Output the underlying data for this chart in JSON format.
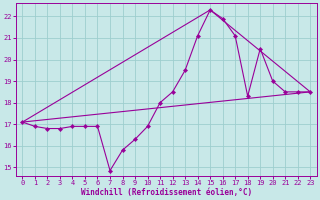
{
  "xlabel": "Windchill (Refroidissement éolien,°C)",
  "background_color": "#c8e8e8",
  "grid_color": "#9ecece",
  "line_color": "#990099",
  "xlim_min": -0.5,
  "xlim_max": 23.5,
  "ylim_min": 14.6,
  "ylim_max": 22.6,
  "xticks": [
    0,
    1,
    2,
    3,
    4,
    5,
    6,
    7,
    8,
    9,
    10,
    11,
    12,
    13,
    14,
    15,
    16,
    17,
    18,
    19,
    20,
    21,
    22,
    23
  ],
  "yticks": [
    15,
    16,
    17,
    18,
    19,
    20,
    21,
    22
  ],
  "line1_x": [
    0,
    1,
    2,
    3,
    4,
    5,
    6,
    7,
    8,
    9,
    10,
    11,
    12,
    13,
    14,
    15,
    16,
    17,
    18,
    19,
    20,
    21,
    22,
    23
  ],
  "line1_y": [
    17.1,
    16.9,
    16.8,
    16.8,
    16.9,
    16.9,
    16.9,
    14.85,
    15.8,
    16.3,
    16.9,
    18.0,
    18.5,
    19.5,
    21.1,
    22.3,
    21.9,
    21.1,
    18.3,
    20.5,
    19.0,
    18.5,
    18.5,
    18.5
  ],
  "line2_x": [
    0,
    23
  ],
  "line2_y": [
    17.1,
    18.5
  ],
  "line3_x": [
    0,
    15,
    23
  ],
  "line3_y": [
    17.1,
    22.3,
    18.5
  ],
  "xlabel_fontsize": 5.5,
  "tick_fontsize": 5.0,
  "linewidth": 0.8,
  "markersize": 2.2
}
